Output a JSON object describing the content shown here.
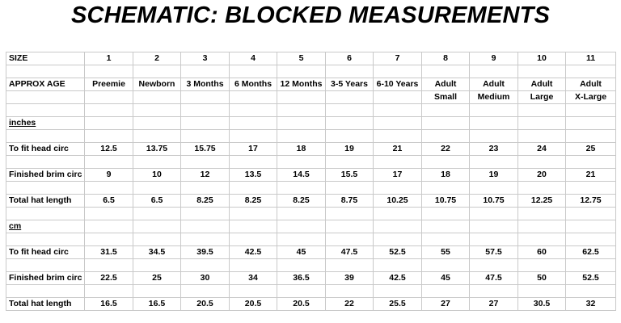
{
  "title": "SCHEMATIC: BLOCKED MEASUREMENTS",
  "labels": {
    "size": "SIZE",
    "approx_age": "APPROX AGE",
    "inches_section": "inches",
    "cm_section": "cm"
  },
  "sizes": [
    "1",
    "2",
    "3",
    "4",
    "5",
    "6",
    "7",
    "8",
    "9",
    "10",
    "11"
  ],
  "ages": [
    "Preemie",
    "Newborn",
    "3 Months",
    "6 Months",
    "12 Months",
    "3-5 Years",
    "6-10 Years",
    "Adult",
    "Adult",
    "Adult",
    "Adult"
  ],
  "ages_line2": [
    "",
    "",
    "",
    "",
    "",
    "",
    "",
    "Small",
    "Medium",
    "Large",
    "X-Large"
  ],
  "inches": [
    {
      "label": "To fit head circ",
      "values": [
        "12.5",
        "13.75",
        "15.75",
        "17",
        "18",
        "19",
        "21",
        "22",
        "23",
        "24",
        "25"
      ]
    },
    {
      "label": "Finished brim circ",
      "values": [
        "9",
        "10",
        "12",
        "13.5",
        "14.5",
        "15.5",
        "17",
        "18",
        "19",
        "20",
        "21"
      ]
    },
    {
      "label": "Total hat length",
      "values": [
        "6.5",
        "6.5",
        "8.25",
        "8.25",
        "8.25",
        "8.75",
        "10.25",
        "10.75",
        "10.75",
        "12.25",
        "12.75"
      ]
    }
  ],
  "cm": [
    {
      "label": "To fit head circ",
      "values": [
        "31.5",
        "34.5",
        "39.5",
        "42.5",
        "45",
        "47.5",
        "52.5",
        "55",
        "57.5",
        "60",
        "62.5"
      ]
    },
    {
      "label": "Finished brim circ",
      "values": [
        "22.5",
        "25",
        "30",
        "34",
        "36.5",
        "39",
        "42.5",
        "45",
        "47.5",
        "50",
        "52.5"
      ]
    },
    {
      "label": "Total hat length",
      "values": [
        "16.5",
        "16.5",
        "20.5",
        "20.5",
        "20.5",
        "22",
        "25.5",
        "27",
        "27",
        "30.5",
        "32"
      ]
    }
  ]
}
